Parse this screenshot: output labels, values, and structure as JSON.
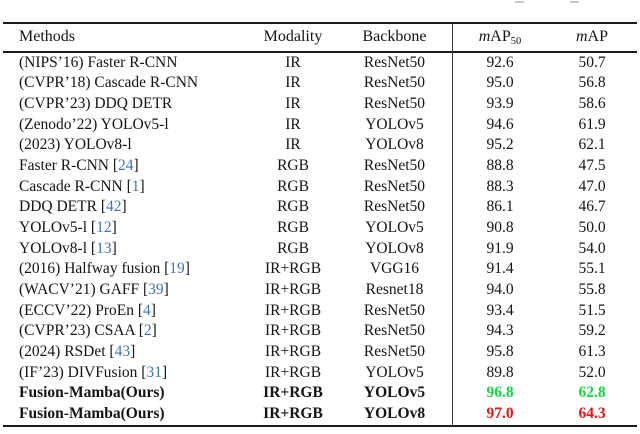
{
  "colors": {
    "citation": "#3D76B8",
    "best_green": "#12D741",
    "best_red": "#F01111",
    "text": "#141414",
    "rule": "#1c1c1c"
  },
  "table": {
    "headers": {
      "methods": "Methods",
      "modality": "Modality",
      "backbone": "Backbone",
      "map50": {
        "m": "m",
        "ap": "AP",
        "sub": "50"
      },
      "map": {
        "m": "m",
        "ap": "AP"
      }
    },
    "rows": [
      {
        "method": "(NIPS’16) Faster R-CNN",
        "cite": null,
        "modality": "IR",
        "backbone": "ResNet50",
        "map50": "92.6",
        "map": "50.7",
        "bold": false,
        "color": null
      },
      {
        "method": "(CVPR’18) Cascade R-CNN",
        "cite": null,
        "modality": "IR",
        "backbone": "ResNet50",
        "map50": "95.0",
        "map": "56.8",
        "bold": false,
        "color": null
      },
      {
        "method": "(CVPR’23) DDQ DETR",
        "cite": null,
        "modality": "IR",
        "backbone": "ResNet50",
        "map50": "93.9",
        "map": "58.6",
        "bold": false,
        "color": null
      },
      {
        "method": "(Zenodo’22) YOLOv5-l",
        "cite": null,
        "modality": "IR",
        "backbone": "YOLOv5",
        "map50": "94.6",
        "map": "61.9",
        "bold": false,
        "color": null
      },
      {
        "method": "(2023) YOLOv8-l",
        "cite": null,
        "modality": "IR",
        "backbone": "YOLOv8",
        "map50": "95.2",
        "map": "62.1",
        "bold": false,
        "color": null
      },
      {
        "method": "Faster R-CNN",
        "cite": "24",
        "modality": "RGB",
        "backbone": "ResNet50",
        "map50": "88.8",
        "map": "47.5",
        "bold": false,
        "color": null
      },
      {
        "method": "Cascade R-CNN",
        "cite": "1",
        "modality": "RGB",
        "backbone": "ResNet50",
        "map50": "88.3",
        "map": "47.0",
        "bold": false,
        "color": null
      },
      {
        "method": "DDQ DETR",
        "cite": "42",
        "modality": "RGB",
        "backbone": "ResNet50",
        "map50": "86.1",
        "map": "46.7",
        "bold": false,
        "color": null
      },
      {
        "method": "YOLOv5-l",
        "cite": "12",
        "modality": "RGB",
        "backbone": "YOLOv5",
        "map50": "90.8",
        "map": "50.0",
        "bold": false,
        "color": null
      },
      {
        "method": "YOLOv8-l",
        "cite": "13",
        "modality": "RGB",
        "backbone": "YOLOv8",
        "map50": "91.9",
        "map": "54.0",
        "bold": false,
        "color": null
      },
      {
        "method": "(2016) Halfway fusion",
        "cite": "19",
        "modality": "IR+RGB",
        "backbone": "VGG16",
        "map50": "91.4",
        "map": "55.1",
        "bold": false,
        "color": null
      },
      {
        "method": "(WACV’21) GAFF",
        "cite": "39",
        "modality": "IR+RGB",
        "backbone": "Resnet18",
        "map50": "94.0",
        "map": "55.8",
        "bold": false,
        "color": null
      },
      {
        "method": "(ECCV’22) ProEn",
        "cite": "4",
        "modality": "IR+RGB",
        "backbone": "ResNet50",
        "map50": "93.4",
        "map": "51.5",
        "bold": false,
        "color": null
      },
      {
        "method": "(CVPR’23) CSAA",
        "cite": "2",
        "modality": "IR+RGB",
        "backbone": "ResNet50",
        "map50": "94.3",
        "map": "59.2",
        "bold": false,
        "color": null
      },
      {
        "method": "(2024) RSDet",
        "cite": "43",
        "modality": "IR+RGB",
        "backbone": "ResNet50",
        "map50": "95.8",
        "map": "61.3",
        "bold": false,
        "color": null
      },
      {
        "method": "(IF’23) DIVFusion",
        "cite": "31",
        "modality": "IR+RGB",
        "backbone": "YOLOv5",
        "map50": "89.8",
        "map": "52.0",
        "bold": false,
        "color": null
      },
      {
        "method": "Fusion-Mamba(Ours)",
        "cite": null,
        "modality": "IR+RGB",
        "backbone": "YOLOv5",
        "map50": "96.8",
        "map": "62.8",
        "bold": true,
        "color": "best_green"
      },
      {
        "method": "Fusion-Mamba(Ours)",
        "cite": null,
        "modality": "IR+RGB",
        "backbone": "YOLOv8",
        "map50": "97.0",
        "map": "64.3",
        "bold": true,
        "color": "best_red"
      }
    ]
  }
}
